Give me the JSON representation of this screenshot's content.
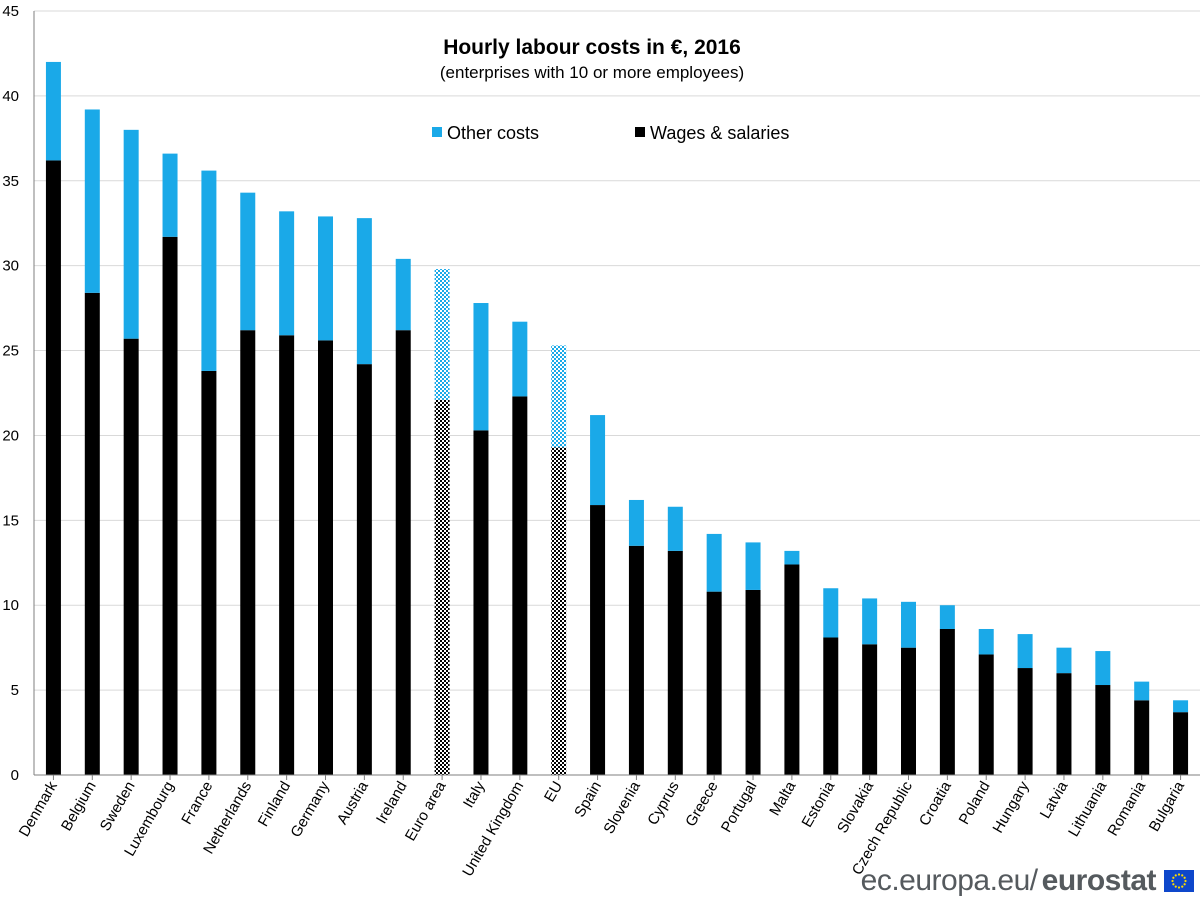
{
  "chart_data": {
    "type": "bar",
    "stacked": true,
    "title": "Hourly labour costs in €, 2016",
    "subtitle": "(enterprises with 10 or more employees)",
    "xlabel": "",
    "ylabel": "",
    "ylim": [
      0,
      45
    ],
    "yticks": [
      0,
      5,
      10,
      15,
      20,
      25,
      30,
      35,
      40,
      45
    ],
    "grid": true,
    "legend_position": "top-center",
    "categories": [
      "Denmark",
      "Belgium",
      "Sweden",
      "Luxembourg",
      "France",
      "Netherlands",
      "Finland",
      "Germany",
      "Austria",
      "Ireland",
      "Euro area",
      "Italy",
      "United Kingdom",
      "EU",
      "Spain",
      "Slovenia",
      "Cyprus",
      "Greece",
      "Portugal",
      "Malta",
      "Estonia",
      "Slovakia",
      "Czech Republic",
      "Croatia",
      "Poland",
      "Hungary",
      "Latvia",
      "Lithuania",
      "Romania",
      "Bulgaria"
    ],
    "aggregates": [
      "Euro area",
      "EU"
    ],
    "series": [
      {
        "name": "Wages & salaries",
        "color": "#000000",
        "values": [
          36.2,
          28.4,
          25.7,
          31.7,
          23.8,
          26.2,
          25.9,
          25.6,
          24.2,
          26.2,
          22.1,
          20.3,
          22.3,
          19.3,
          15.9,
          13.5,
          13.2,
          10.8,
          10.9,
          12.4,
          8.1,
          7.7,
          7.5,
          8.6,
          7.1,
          6.3,
          6.0,
          5.3,
          4.4,
          3.7
        ]
      },
      {
        "name": "Other costs",
        "color": "#1aa9e8",
        "values": [
          5.8,
          10.8,
          12.3,
          4.9,
          11.8,
          8.1,
          7.3,
          7.3,
          8.6,
          4.2,
          7.7,
          7.5,
          4.4,
          6.0,
          5.3,
          2.7,
          2.6,
          3.4,
          2.8,
          0.8,
          2.9,
          2.7,
          2.7,
          1.4,
          1.5,
          2.0,
          1.5,
          2.0,
          1.1,
          0.7
        ]
      }
    ],
    "legend": [
      {
        "label": "Other costs",
        "color": "#1aa9e8"
      },
      {
        "label": "Wages & salaries",
        "color": "#000000"
      }
    ]
  },
  "footer": {
    "site": "ec.europa.eu/",
    "brand": "eurostat",
    "flag_color": "#0e47cb",
    "star_color": "#ffdd00"
  }
}
